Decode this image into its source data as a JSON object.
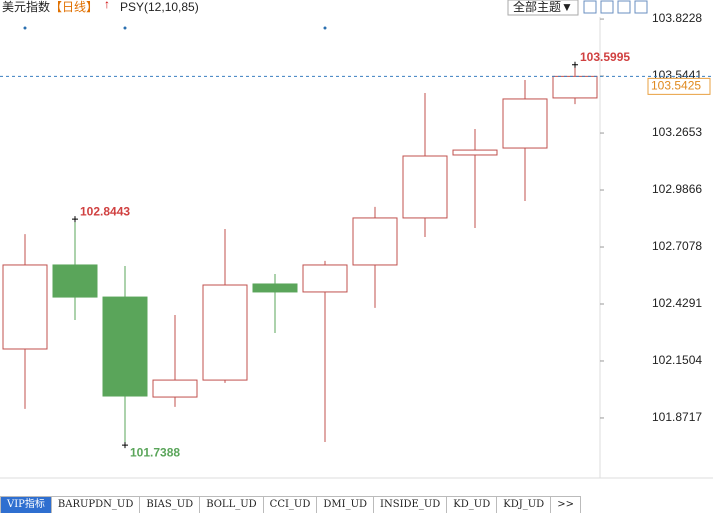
{
  "header": {
    "title": "美元指数",
    "period": "【日线】",
    "indicator": "PSY(12,10,85)",
    "theme_button": "全部主题▼"
  },
  "chart_data": {
    "type": "candlestick",
    "open": [
      102.209,
      102.62,
      102.463,
      101.974,
      102.057,
      102.527,
      102.488,
      102.62,
      102.85,
      103.158,
      103.192,
      103.437
    ],
    "high": [
      102.771,
      102.8443,
      102.615,
      102.375,
      102.796,
      102.576,
      102.64,
      102.904,
      103.461,
      103.285,
      103.525,
      103.5995
    ],
    "low": [
      101.916,
      102.351,
      101.7388,
      101.926,
      102.043,
      102.287,
      101.754,
      102.41,
      102.757,
      102.801,
      102.933,
      103.407
    ],
    "close": [
      102.62,
      102.463,
      101.979,
      102.057,
      102.522,
      102.488,
      102.62,
      102.85,
      103.153,
      103.182,
      103.432,
      103.5425
    ],
    "up_color": "#c0504d",
    "down_color": "#5aa55a",
    "ylim": [
      101.578,
      103.828
    ],
    "yticks": [
      101.8717,
      102.1504,
      102.4291,
      102.7078,
      102.9866,
      103.2653,
      103.5441,
      103.8228
    ]
  },
  "tabs": [
    "VIP指标",
    "BARUPDN_UD",
    "BIAS_UD",
    "BOLL_UD",
    "CCI_UD",
    "DMI_UD",
    "INSIDE_UD",
    "KD_UD",
    "KDJ_UD",
    ">>"
  ]
}
